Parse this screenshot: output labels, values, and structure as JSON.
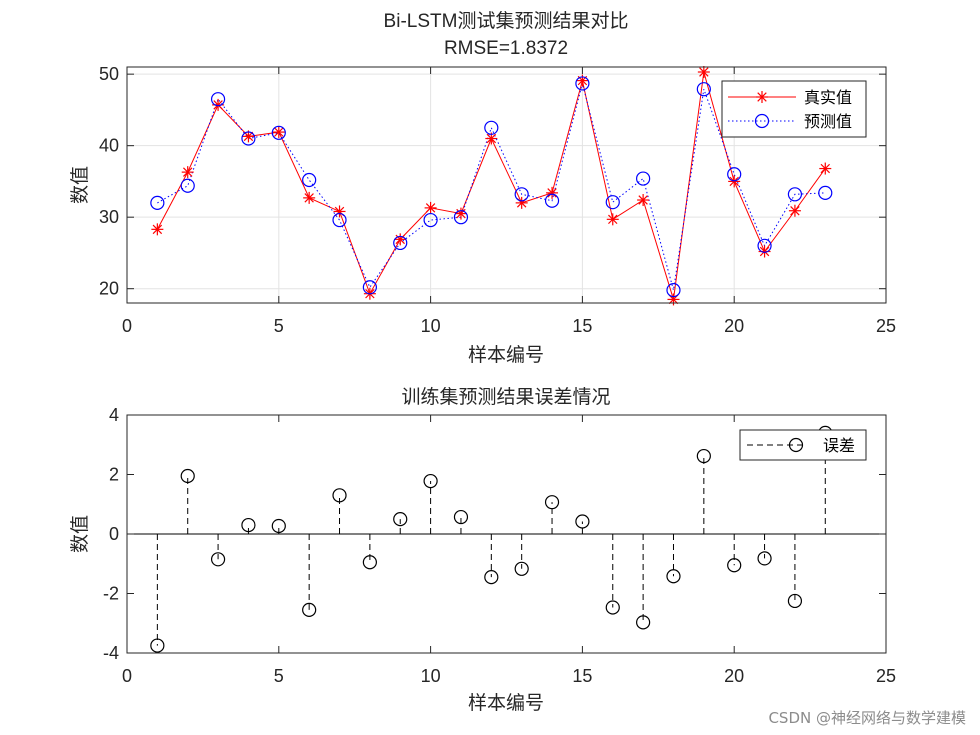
{
  "watermark": "CSDN @神经网络与数学建模",
  "chart_data": [
    {
      "type": "line",
      "title": "Bi-LSTM测试集预测结果对比",
      "subtitle": "RMSE=1.8372",
      "xlabel": "样本编号",
      "ylabel": "数值",
      "xlim": [
        0,
        25
      ],
      "ylim": [
        18,
        51
      ],
      "xticks": [
        0,
        5,
        10,
        15,
        20,
        25
      ],
      "yticks": [
        20,
        30,
        40,
        50
      ],
      "grid": true,
      "legend_position": "top-right",
      "x": [
        1,
        2,
        3,
        4,
        5,
        6,
        7,
        8,
        9,
        10,
        11,
        12,
        13,
        14,
        15,
        16,
        17,
        18,
        19,
        20,
        21,
        22,
        23
      ],
      "series": [
        {
          "name": "真实值",
          "color": "#ff0000",
          "marker": "asterisk",
          "line": "solid",
          "values": [
            28.3,
            36.3,
            45.7,
            41.3,
            41.9,
            32.7,
            30.8,
            19.3,
            26.9,
            31.3,
            30.5,
            41.0,
            32.0,
            33.4,
            49.1,
            29.7,
            32.4,
            18.5,
            50.3,
            35.0,
            25.2,
            30.9,
            36.8
          ]
        },
        {
          "name": "预测值",
          "color": "#0000ff",
          "marker": "circle",
          "line": "dotted",
          "values": [
            32.0,
            34.4,
            46.5,
            41.0,
            41.8,
            35.2,
            29.6,
            20.2,
            26.4,
            29.6,
            30.0,
            42.5,
            33.2,
            32.3,
            48.7,
            32.1,
            35.4,
            19.8,
            47.9,
            36.0,
            26.0,
            33.2,
            33.4
          ]
        }
      ]
    },
    {
      "type": "stem",
      "title": "训练集预测结果误差情况",
      "xlabel": "样本编号",
      "ylabel": "数值",
      "xlim": [
        0,
        25
      ],
      "ylim": [
        -4,
        4
      ],
      "xticks": [
        0,
        5,
        10,
        15,
        20,
        25
      ],
      "yticks": [
        -4,
        -2,
        0,
        2,
        4
      ],
      "grid": false,
      "legend_position": "top-right",
      "x": [
        1,
        2,
        3,
        4,
        5,
        6,
        7,
        8,
        9,
        10,
        11,
        12,
        13,
        14,
        15,
        16,
        17,
        18,
        19,
        20,
        21,
        22,
        23
      ],
      "series": [
        {
          "name": "误差",
          "color": "#000000",
          "marker": "circle",
          "line": "dashed",
          "values": [
            -3.75,
            1.95,
            -0.85,
            0.3,
            0.27,
            -2.55,
            1.3,
            -0.95,
            0.5,
            1.78,
            0.57,
            -1.45,
            -1.17,
            1.07,
            0.42,
            -2.47,
            -2.97,
            -1.42,
            2.62,
            -1.05,
            -0.82,
            -2.25,
            3.4
          ]
        }
      ]
    }
  ]
}
